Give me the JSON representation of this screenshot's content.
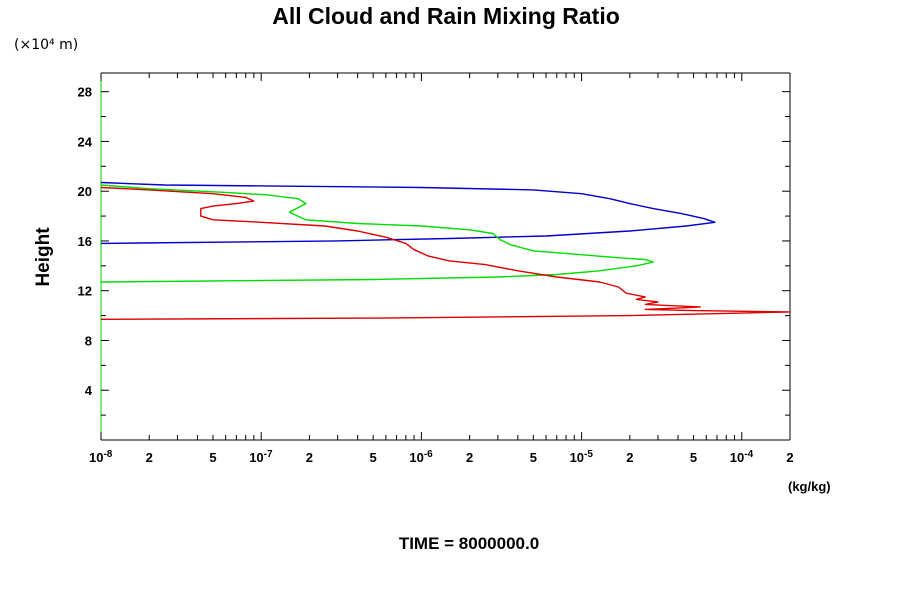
{
  "chart_data": {
    "type": "line",
    "title": "All Cloud and Rain Mixing Ratio",
    "ylabel": "Height",
    "y_unit_label": "(×10⁴ m)",
    "x_unit_label": "(kg/kg)",
    "footer": "TIME = 8000000.0",
    "x_scale": "log",
    "xlim": [
      1e-08,
      0.0002
    ],
    "ylim": [
      0,
      29.5
    ],
    "grid": false,
    "legend": "none",
    "y_ticks": [
      {
        "value": 4,
        "label": "4"
      },
      {
        "value": 8,
        "label": "8"
      },
      {
        "value": 12,
        "label": "12"
      },
      {
        "value": 16,
        "label": "16"
      },
      {
        "value": 20,
        "label": "20"
      },
      {
        "value": 24,
        "label": "24"
      },
      {
        "value": 28,
        "label": "28"
      }
    ],
    "x_ticks": [
      {
        "value": 1e-08,
        "mant": "10",
        "exp": "-8"
      },
      {
        "value": 2e-08,
        "mant": "2",
        "exp": ""
      },
      {
        "value": 5e-08,
        "mant": "5",
        "exp": ""
      },
      {
        "value": 1e-07,
        "mant": "10",
        "exp": "-7"
      },
      {
        "value": 2e-07,
        "mant": "2",
        "exp": ""
      },
      {
        "value": 5e-07,
        "mant": "5",
        "exp": ""
      },
      {
        "value": 1e-06,
        "mant": "10",
        "exp": "-6"
      },
      {
        "value": 2e-06,
        "mant": "2",
        "exp": ""
      },
      {
        "value": 5e-06,
        "mant": "5",
        "exp": ""
      },
      {
        "value": 1e-05,
        "mant": "10",
        "exp": "-5"
      },
      {
        "value": 2e-05,
        "mant": "2",
        "exp": ""
      },
      {
        "value": 5e-05,
        "mant": "5",
        "exp": ""
      },
      {
        "value": 0.0001,
        "mant": "10",
        "exp": "-4"
      },
      {
        "value": 0.0002,
        "mant": "2",
        "exp": ""
      }
    ],
    "series": [
      {
        "color": "#0000cc",
        "points": [
          [
            1e-08,
            15.8
          ],
          [
            3e-07,
            16.0
          ],
          [
            1.5e-06,
            16.2
          ],
          [
            6e-06,
            16.4
          ],
          [
            2e-05,
            16.8
          ],
          [
            4.5e-05,
            17.2
          ],
          [
            6.8e-05,
            17.5
          ],
          [
            5.8e-05,
            17.8
          ],
          [
            4.2e-05,
            18.2
          ],
          [
            2.8e-05,
            18.6
          ],
          [
            2e-05,
            19.0
          ],
          [
            1.5e-05,
            19.4
          ],
          [
            1e-05,
            19.8
          ],
          [
            5e-06,
            20.1
          ],
          [
            1e-06,
            20.3
          ],
          [
            1.5e-07,
            20.4
          ],
          [
            2.5e-08,
            20.5
          ],
          [
            1e-08,
            20.7
          ]
        ]
      },
      {
        "color": "#00dd00",
        "points": [
          [
            1e-08,
            12.7
          ],
          [
            5e-07,
            12.9
          ],
          [
            3e-06,
            13.1
          ],
          [
            7e-06,
            13.3
          ],
          [
            1.3e-05,
            13.6
          ],
          [
            2.2e-05,
            14.0
          ],
          [
            2.8e-05,
            14.3
          ],
          [
            2.5e-05,
            14.5
          ],
          [
            1.5e-05,
            14.7
          ],
          [
            8e-06,
            15.0
          ],
          [
            5e-06,
            15.2
          ],
          [
            3.6e-06,
            15.7
          ],
          [
            3.1e-06,
            16.1
          ],
          [
            2.8e-06,
            16.6
          ],
          [
            2e-06,
            16.9
          ],
          [
            1e-06,
            17.2
          ],
          [
            4e-07,
            17.4
          ],
          [
            1.9e-07,
            17.7
          ],
          [
            1.5e-07,
            18.3
          ],
          [
            1.9e-07,
            19.0
          ],
          [
            1.7e-07,
            19.4
          ],
          [
            1.1e-07,
            19.7
          ],
          [
            6e-08,
            19.9
          ],
          [
            2e-08,
            20.2
          ],
          [
            1e-08,
            20.5
          ]
        ]
      },
      {
        "color": "#dd0000",
        "points": [
          [
            1e-08,
            9.7
          ],
          [
            5e-07,
            9.8
          ],
          [
            2e-05,
            10.0
          ],
          [
            0.0001,
            10.2
          ],
          [
            0.0002,
            10.3
          ],
          [
            5e-05,
            10.4
          ],
          [
            2.5e-05,
            10.5
          ],
          [
            4e-05,
            10.6
          ],
          [
            5.5e-05,
            10.7
          ],
          [
            3.5e-05,
            10.8
          ],
          [
            2.5e-05,
            10.9
          ],
          [
            3e-05,
            11.1
          ],
          [
            2.2e-05,
            11.3
          ],
          [
            2.5e-05,
            11.5
          ],
          [
            1.9e-05,
            11.8
          ],
          [
            1.7e-05,
            12.3
          ],
          [
            1.3e-05,
            12.7
          ],
          [
            7e-06,
            13.1
          ],
          [
            4e-06,
            13.6
          ],
          [
            2.5e-06,
            14.1
          ],
          [
            1.5e-06,
            14.4
          ],
          [
            1.1e-06,
            14.8
          ],
          [
            9e-07,
            15.3
          ],
          [
            8e-07,
            15.8
          ],
          [
            6e-07,
            16.3
          ],
          [
            4e-07,
            16.8
          ],
          [
            2.5e-07,
            17.2
          ],
          [
            1e-07,
            17.5
          ],
          [
            5e-08,
            17.7
          ],
          [
            4.2e-08,
            18.0
          ],
          [
            4.2e-08,
            18.6
          ],
          [
            5e-08,
            18.8
          ],
          [
            7e-08,
            19.0
          ],
          [
            9e-08,
            19.2
          ],
          [
            8e-08,
            19.5
          ],
          [
            5e-08,
            19.8
          ],
          [
            2e-08,
            20.1
          ],
          [
            1e-08,
            20.3
          ]
        ]
      }
    ]
  }
}
